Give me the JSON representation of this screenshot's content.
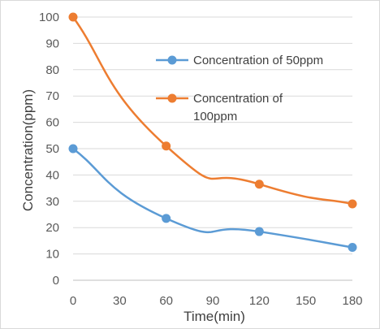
{
  "chart_data": {
    "type": "line",
    "title": "",
    "xlabel": "Time(min)",
    "ylabel": "Concentration(ppm)",
    "xlim": [
      0,
      180
    ],
    "ylim": [
      0,
      100
    ],
    "xticks": [
      0,
      30,
      60,
      90,
      120,
      150,
      180
    ],
    "yticks": [
      0,
      10,
      20,
      30,
      40,
      50,
      60,
      70,
      80,
      90,
      100
    ],
    "grid": "horizontal",
    "smooth": true,
    "legend_position": "right",
    "series": [
      {
        "name": "Concentration of 50ppm",
        "legend_lines": [
          "Concentration of 50ppm"
        ],
        "color": "#5b9bd5",
        "x": [
          0,
          60,
          120,
          180
        ],
        "y": [
          50,
          23.5,
          18.5,
          12.5
        ]
      },
      {
        "name": "Concentration of 100ppm",
        "legend_lines": [
          "Concentration of",
          "100ppm"
        ],
        "color": "#ed7d31",
        "x": [
          0,
          60,
          120,
          180
        ],
        "y": [
          100,
          51,
          36.5,
          29
        ]
      }
    ]
  }
}
